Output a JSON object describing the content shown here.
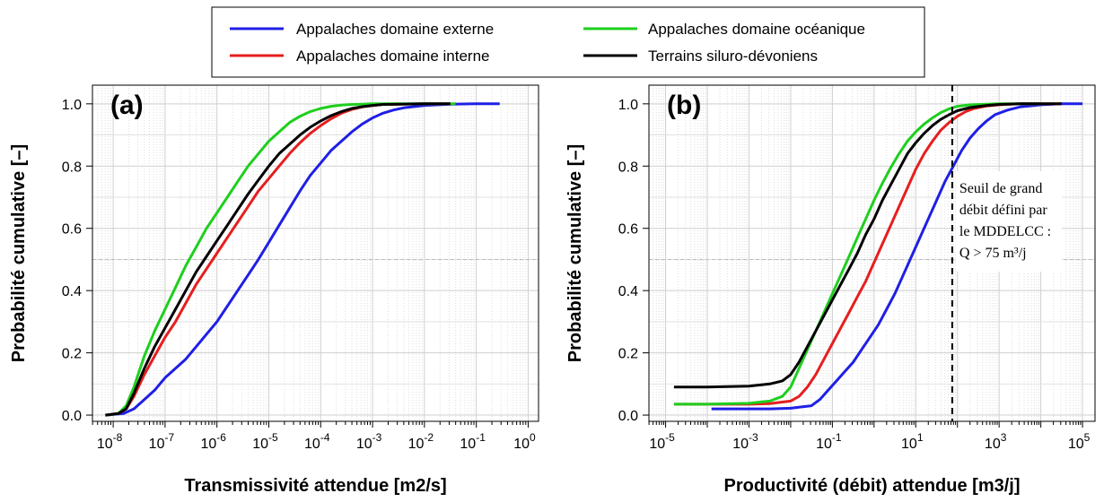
{
  "colors": {
    "externe": "#1f1fe6",
    "interne": "#e61e1e",
    "oceanique": "#1ecf1e",
    "siluro": "#000000"
  },
  "legend": {
    "placement": "top-center",
    "entries": [
      {
        "label": "Appalaches domaine externe",
        "color": "#1f1fe6"
      },
      {
        "label": "Appalaches domaine interne",
        "color": "#e61e1e"
      },
      {
        "label": "Appalaches domaine océanique",
        "color": "#1ecf1e"
      },
      {
        "label": "Terrains siluro-dévoniens",
        "color": "#000000"
      }
    ]
  },
  "chart_data": [
    {
      "type": "line",
      "panel_label": "(a)",
      "xlabel": "Transmissivité attendue [m2/s]",
      "ylabel": "Probabilité cumulative [–]",
      "xscale": "log",
      "xlim_exp": [
        -8.4,
        0.2
      ],
      "ylim": [
        -0.02,
        1.06
      ],
      "yticks": [
        "0.0",
        "0.2",
        "0.4",
        "0.6",
        "0.8",
        "1.0"
      ],
      "xtick_exponents": [
        "-8",
        "-7",
        "-6",
        "-5",
        "-4",
        "-3",
        "-2",
        "-1",
        "0"
      ],
      "reference_line_y": 0.5,
      "grid": true,
      "series": [
        {
          "name": "Appalaches domaine externe",
          "color": "#1f1fe6",
          "x_exp": [
            -8.15,
            -7.8,
            -7.6,
            -7.4,
            -7.2,
            -7.0,
            -6.8,
            -6.6,
            -6.4,
            -6.2,
            -6.0,
            -5.8,
            -5.6,
            -5.4,
            -5.2,
            -5.0,
            -4.8,
            -4.6,
            -4.4,
            -4.2,
            -4.0,
            -3.8,
            -3.6,
            -3.4,
            -3.2,
            -3.0,
            -2.8,
            -2.6,
            -2.4,
            -2.0,
            -1.5,
            -1.0,
            -0.55
          ],
          "y": [
            0.0,
            0.005,
            0.02,
            0.05,
            0.08,
            0.12,
            0.15,
            0.18,
            0.22,
            0.26,
            0.3,
            0.35,
            0.4,
            0.45,
            0.5,
            0.555,
            0.61,
            0.665,
            0.72,
            0.77,
            0.81,
            0.85,
            0.88,
            0.91,
            0.935,
            0.955,
            0.97,
            0.98,
            0.987,
            0.995,
            0.999,
            1.0,
            1.0
          ]
        },
        {
          "name": "Appalaches domaine interne",
          "color": "#e61e1e",
          "x_exp": [
            -8.15,
            -7.9,
            -7.75,
            -7.6,
            -7.4,
            -7.2,
            -7.0,
            -6.8,
            -6.6,
            -6.4,
            -6.2,
            -6.0,
            -5.8,
            -5.6,
            -5.4,
            -5.2,
            -5.0,
            -4.8,
            -4.6,
            -4.4,
            -4.2,
            -4.0,
            -3.8,
            -3.6,
            -3.4,
            -3.2,
            -3.0,
            -2.8,
            -2.5,
            -2.0,
            -1.5
          ],
          "y": [
            0.0,
            0.005,
            0.02,
            0.06,
            0.13,
            0.19,
            0.25,
            0.3,
            0.36,
            0.42,
            0.47,
            0.52,
            0.57,
            0.62,
            0.67,
            0.72,
            0.76,
            0.8,
            0.84,
            0.875,
            0.905,
            0.93,
            0.952,
            0.97,
            0.982,
            0.99,
            0.995,
            0.998,
            0.999,
            1.0,
            1.0
          ]
        },
        {
          "name": "Appalaches domaine océanique",
          "color": "#1ecf1e",
          "x_exp": [
            -8.15,
            -7.9,
            -7.75,
            -7.6,
            -7.4,
            -7.2,
            -7.0,
            -6.8,
            -6.6,
            -6.4,
            -6.2,
            -6.0,
            -5.8,
            -5.6,
            -5.4,
            -5.2,
            -5.0,
            -4.8,
            -4.6,
            -4.4,
            -4.2,
            -4.0,
            -3.8,
            -3.6,
            -3.4,
            -3.2,
            -3.0,
            -2.5,
            -2.0,
            -1.4
          ],
          "y": [
            0.0,
            0.005,
            0.03,
            0.09,
            0.19,
            0.27,
            0.34,
            0.41,
            0.48,
            0.54,
            0.6,
            0.65,
            0.7,
            0.75,
            0.8,
            0.84,
            0.88,
            0.91,
            0.94,
            0.96,
            0.975,
            0.985,
            0.992,
            0.996,
            0.998,
            0.999,
            1.0,
            1.0,
            1.0,
            1.0
          ]
        },
        {
          "name": "Terrains siluro-dévoniens",
          "color": "#000000",
          "x_exp": [
            -8.15,
            -7.9,
            -7.75,
            -7.6,
            -7.4,
            -7.2,
            -7.0,
            -6.8,
            -6.6,
            -6.4,
            -6.2,
            -6.0,
            -5.8,
            -5.6,
            -5.4,
            -5.2,
            -5.0,
            -4.8,
            -4.6,
            -4.4,
            -4.2,
            -4.0,
            -3.8,
            -3.6,
            -3.4,
            -3.2,
            -3.0,
            -2.8,
            -2.5,
            -2.0,
            -1.5
          ],
          "y": [
            0.0,
            0.005,
            0.02,
            0.07,
            0.15,
            0.22,
            0.28,
            0.34,
            0.4,
            0.46,
            0.51,
            0.56,
            0.61,
            0.66,
            0.71,
            0.755,
            0.8,
            0.84,
            0.87,
            0.9,
            0.925,
            0.945,
            0.962,
            0.975,
            0.985,
            0.991,
            0.995,
            0.998,
            0.999,
            1.0,
            1.0
          ]
        }
      ]
    },
    {
      "type": "line",
      "panel_label": "(b)",
      "xlabel": "Productivité (débit) attendue [m3/j]",
      "ylabel": "Probabilité cumulative [–]",
      "xscale": "log",
      "xlim_exp": [
        -5.4,
        5.3
      ],
      "ylim": [
        -0.02,
        1.06
      ],
      "yticks": [
        "0.0",
        "0.2",
        "0.4",
        "0.6",
        "0.8",
        "1.0"
      ],
      "xtick_exponents": [
        "-5",
        "-3",
        "-1",
        "1",
        "3",
        "5"
      ],
      "reference_line_y": 0.5,
      "threshold_x": 75,
      "annotation": [
        "Seuil de grand",
        "débit défini par",
        "le MDDELCC :",
        "Q > 75 m³/j"
      ],
      "grid": true,
      "series": [
        {
          "name": "Appalaches domaine externe",
          "color": "#1f1fe6",
          "x_exp": [
            -3.9,
            -3.5,
            -3.0,
            -2.5,
            -2.0,
            -1.5,
            -1.3,
            -1.1,
            -0.9,
            -0.7,
            -0.5,
            -0.3,
            -0.1,
            0.1,
            0.3,
            0.5,
            0.7,
            0.9,
            1.1,
            1.3,
            1.5,
            1.7,
            1.9,
            2.1,
            2.3,
            2.5,
            2.7,
            2.9,
            3.2,
            3.5,
            4.0,
            4.5,
            5.0
          ],
          "y": [
            0.02,
            0.02,
            0.02,
            0.02,
            0.022,
            0.03,
            0.05,
            0.08,
            0.11,
            0.14,
            0.17,
            0.21,
            0.25,
            0.29,
            0.34,
            0.39,
            0.45,
            0.51,
            0.57,
            0.63,
            0.69,
            0.75,
            0.8,
            0.85,
            0.89,
            0.92,
            0.945,
            0.965,
            0.98,
            0.99,
            0.997,
            1.0,
            1.0
          ]
        },
        {
          "name": "Appalaches domaine interne",
          "color": "#e61e1e",
          "x_exp": [
            -4.8,
            -4.0,
            -3.0,
            -2.5,
            -2.0,
            -1.8,
            -1.6,
            -1.4,
            -1.2,
            -1.0,
            -0.8,
            -0.6,
            -0.4,
            -0.2,
            0.0,
            0.2,
            0.4,
            0.6,
            0.8,
            1.0,
            1.2,
            1.4,
            1.6,
            1.8,
            2.0,
            2.2,
            2.4,
            2.7,
            3.0,
            3.5,
            4.0,
            4.5
          ],
          "y": [
            0.035,
            0.035,
            0.035,
            0.037,
            0.045,
            0.06,
            0.09,
            0.13,
            0.18,
            0.23,
            0.28,
            0.33,
            0.38,
            0.43,
            0.49,
            0.55,
            0.61,
            0.67,
            0.73,
            0.79,
            0.84,
            0.88,
            0.915,
            0.94,
            0.96,
            0.975,
            0.985,
            0.993,
            0.997,
            1.0,
            1.0,
            1.0
          ]
        },
        {
          "name": "Appalaches domaine océanique",
          "color": "#1ecf1e",
          "x_exp": [
            -4.8,
            -4.0,
            -3.0,
            -2.5,
            -2.2,
            -2.0,
            -1.8,
            -1.6,
            -1.4,
            -1.2,
            -1.0,
            -0.8,
            -0.6,
            -0.4,
            -0.2,
            0.0,
            0.2,
            0.4,
            0.6,
            0.8,
            1.0,
            1.2,
            1.4,
            1.6,
            1.8,
            2.0,
            2.3,
            2.7,
            3.0,
            3.5,
            4.0
          ],
          "y": [
            0.035,
            0.035,
            0.038,
            0.045,
            0.06,
            0.09,
            0.15,
            0.21,
            0.27,
            0.33,
            0.39,
            0.45,
            0.51,
            0.57,
            0.63,
            0.69,
            0.745,
            0.795,
            0.84,
            0.88,
            0.91,
            0.935,
            0.955,
            0.972,
            0.984,
            0.992,
            0.997,
            0.999,
            1.0,
            1.0,
            1.0
          ]
        },
        {
          "name": "Terrains siluro-dévoniens",
          "color": "#000000",
          "x_exp": [
            -4.8,
            -4.0,
            -3.0,
            -2.5,
            -2.2,
            -2.0,
            -1.8,
            -1.6,
            -1.4,
            -1.2,
            -1.0,
            -0.8,
            -0.6,
            -0.4,
            -0.2,
            0.0,
            0.2,
            0.4,
            0.6,
            0.8,
            1.0,
            1.2,
            1.4,
            1.6,
            1.8,
            2.0,
            2.3,
            2.7,
            3.0,
            3.5,
            4.0,
            4.5
          ],
          "y": [
            0.09,
            0.09,
            0.093,
            0.1,
            0.11,
            0.13,
            0.17,
            0.22,
            0.27,
            0.32,
            0.37,
            0.42,
            0.47,
            0.52,
            0.58,
            0.63,
            0.69,
            0.74,
            0.79,
            0.84,
            0.875,
            0.905,
            0.93,
            0.95,
            0.965,
            0.978,
            0.988,
            0.995,
            0.998,
            1.0,
            1.0,
            1.0
          ]
        }
      ]
    }
  ]
}
